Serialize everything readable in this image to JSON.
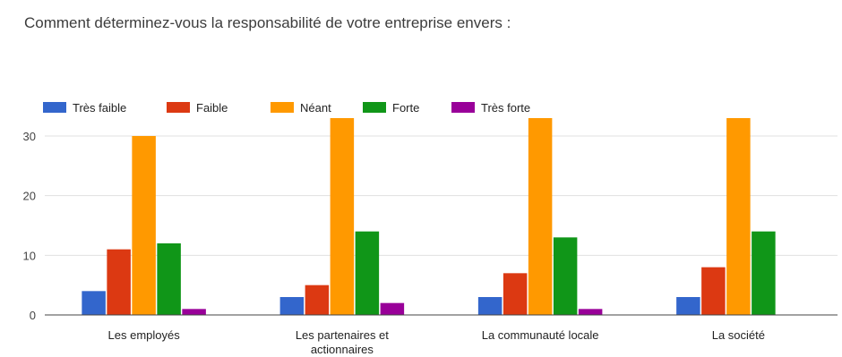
{
  "chart_data": {
    "type": "bar",
    "title": "Comment déterminez-vous la responsabilité de votre entreprise envers :",
    "xlabel": "",
    "ylabel": "",
    "ylim": [
      0,
      33
    ],
    "yticks": [
      0,
      10,
      20,
      30
    ],
    "grid": true,
    "legend_position": "top-left",
    "categories": [
      [
        "Les employés"
      ],
      [
        "Les partenaires et",
        "actionnaires"
      ],
      [
        "La communauté locale"
      ],
      [
        "La société"
      ]
    ],
    "series": [
      {
        "name": "Très faible",
        "color": "#3366cc",
        "values": [
          4,
          3,
          3,
          3
        ]
      },
      {
        "name": "Faible",
        "color": "#dc3912",
        "values": [
          11,
          5,
          7,
          8
        ]
      },
      {
        "name": "Néant",
        "color": "#ff9900",
        "values": [
          30,
          33,
          33,
          33
        ]
      },
      {
        "name": "Forte",
        "color": "#109618",
        "values": [
          12,
          14,
          13,
          14
        ]
      },
      {
        "name": "Très forte",
        "color": "#990099",
        "values": [
          1,
          2,
          1,
          0
        ]
      }
    ]
  }
}
